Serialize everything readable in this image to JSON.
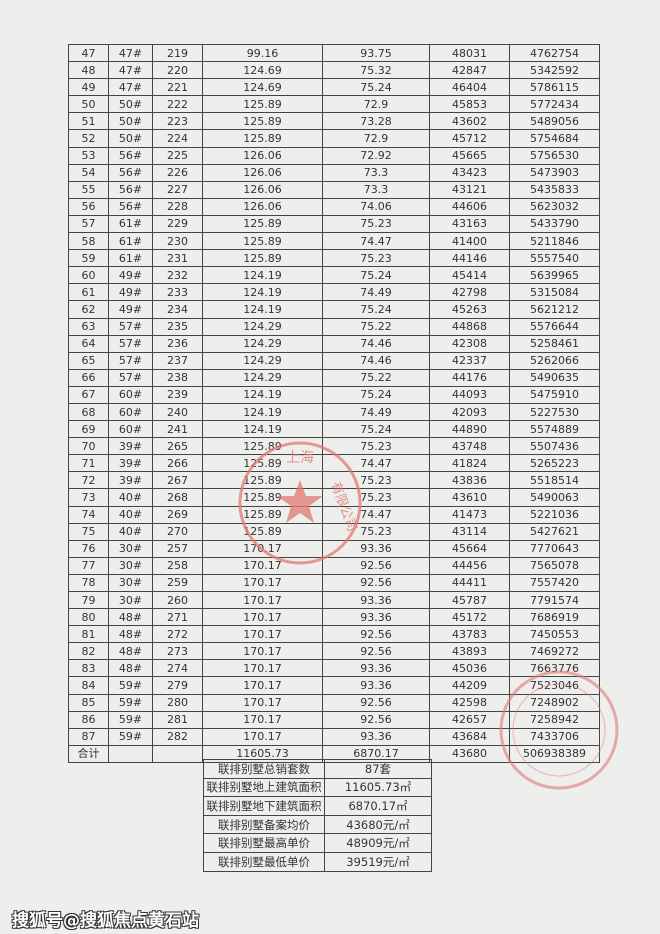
{
  "table": {
    "rows": [
      [
        "47",
        "47#",
        "219",
        "99.16",
        "93.75",
        "48031",
        "4762754"
      ],
      [
        "48",
        "47#",
        "220",
        "124.69",
        "75.32",
        "42847",
        "5342592"
      ],
      [
        "49",
        "47#",
        "221",
        "124.69",
        "75.24",
        "46404",
        "5786115"
      ],
      [
        "50",
        "50#",
        "222",
        "125.89",
        "72.9",
        "45853",
        "5772434"
      ],
      [
        "51",
        "50#",
        "223",
        "125.89",
        "73.28",
        "43602",
        "5489056"
      ],
      [
        "52",
        "50#",
        "224",
        "125.89",
        "72.9",
        "45712",
        "5754684"
      ],
      [
        "53",
        "56#",
        "225",
        "126.06",
        "72.92",
        "45665",
        "5756530"
      ],
      [
        "54",
        "56#",
        "226",
        "126.06",
        "73.3",
        "43423",
        "5473903"
      ],
      [
        "55",
        "56#",
        "227",
        "126.06",
        "73.3",
        "43121",
        "5435833"
      ],
      [
        "56",
        "56#",
        "228",
        "126.06",
        "74.06",
        "44606",
        "5623032"
      ],
      [
        "57",
        "61#",
        "229",
        "125.89",
        "75.23",
        "43163",
        "5433790"
      ],
      [
        "58",
        "61#",
        "230",
        "125.89",
        "74.47",
        "41400",
        "5211846"
      ],
      [
        "59",
        "61#",
        "231",
        "125.89",
        "75.23",
        "44146",
        "5557540"
      ],
      [
        "60",
        "49#",
        "232",
        "124.19",
        "75.24",
        "45414",
        "5639965"
      ],
      [
        "61",
        "49#",
        "233",
        "124.19",
        "74.49",
        "42798",
        "5315084"
      ],
      [
        "62",
        "49#",
        "234",
        "124.19",
        "75.24",
        "45263",
        "5621212"
      ],
      [
        "63",
        "57#",
        "235",
        "124.29",
        "75.22",
        "44868",
        "5576644"
      ],
      [
        "64",
        "57#",
        "236",
        "124.29",
        "74.46",
        "42308",
        "5258461"
      ],
      [
        "65",
        "57#",
        "237",
        "124.29",
        "74.46",
        "42337",
        "5262066"
      ],
      [
        "66",
        "57#",
        "238",
        "124.29",
        "75.22",
        "44176",
        "5490635"
      ],
      [
        "67",
        "60#",
        "239",
        "124.19",
        "75.24",
        "44093",
        "5475910"
      ],
      [
        "68",
        "60#",
        "240",
        "124.19",
        "74.49",
        "42093",
        "5227530"
      ],
      [
        "69",
        "60#",
        "241",
        "124.19",
        "75.24",
        "44890",
        "5574889"
      ],
      [
        "70",
        "39#",
        "265",
        "125.89",
        "75.23",
        "43748",
        "5507436"
      ],
      [
        "71",
        "39#",
        "266",
        "125.89",
        "74.47",
        "41824",
        "5265223"
      ],
      [
        "72",
        "39#",
        "267",
        "125.89",
        "75.23",
        "43836",
        "5518514"
      ],
      [
        "73",
        "40#",
        "268",
        "125.89",
        "75.23",
        "43610",
        "5490063"
      ],
      [
        "74",
        "40#",
        "269",
        "125.89",
        "74.47",
        "41473",
        "5221036"
      ],
      [
        "75",
        "40#",
        "270",
        "125.89",
        "75.23",
        "43114",
        "5427621"
      ],
      [
        "76",
        "30#",
        "257",
        "170.17",
        "93.36",
        "45664",
        "7770643"
      ],
      [
        "77",
        "30#",
        "258",
        "170.17",
        "92.56",
        "44456",
        "7565078"
      ],
      [
        "78",
        "30#",
        "259",
        "170.17",
        "92.56",
        "44411",
        "7557420"
      ],
      [
        "79",
        "30#",
        "260",
        "170.17",
        "93.36",
        "45787",
        "7791574"
      ],
      [
        "80",
        "48#",
        "271",
        "170.17",
        "93.36",
        "45172",
        "7686919"
      ],
      [
        "81",
        "48#",
        "272",
        "170.17",
        "92.56",
        "43783",
        "7450553"
      ],
      [
        "82",
        "48#",
        "273",
        "170.17",
        "92.56",
        "43893",
        "7469272"
      ],
      [
        "83",
        "48#",
        "274",
        "170.17",
        "93.36",
        "45036",
        "7663776"
      ],
      [
        "84",
        "59#",
        "279",
        "170.17",
        "93.36",
        "44209",
        "7523046"
      ],
      [
        "85",
        "59#",
        "280",
        "170.17",
        "92.56",
        "42598",
        "7248902"
      ],
      [
        "86",
        "59#",
        "281",
        "170.17",
        "92.56",
        "42657",
        "7258942"
      ],
      [
        "87",
        "59#",
        "282",
        "170.17",
        "93.36",
        "43684",
        "7433706"
      ]
    ],
    "total": [
      "合计",
      "",
      "",
      "11605.73",
      "6870.17",
      "43680",
      "506938389"
    ]
  },
  "summary": [
    {
      "label": "联排别墅总销套数",
      "value": "87套"
    },
    {
      "label": "联排别墅地上建筑面积",
      "value": "11605.73㎡"
    },
    {
      "label": "联排别墅地下建筑面积",
      "value": "6870.17㎡"
    },
    {
      "label": "联排别墅备案均价",
      "value": "43680元/㎡"
    },
    {
      "label": "联排别墅最高单价",
      "value": "48909元/㎡"
    },
    {
      "label": "联排别墅最低单价",
      "value": "39519元/㎡"
    }
  ],
  "stamp": {
    "text": "上海 有限公司",
    "color": "#d9534f"
  },
  "watermark": "搜狐号@搜狐焦点黄石站"
}
